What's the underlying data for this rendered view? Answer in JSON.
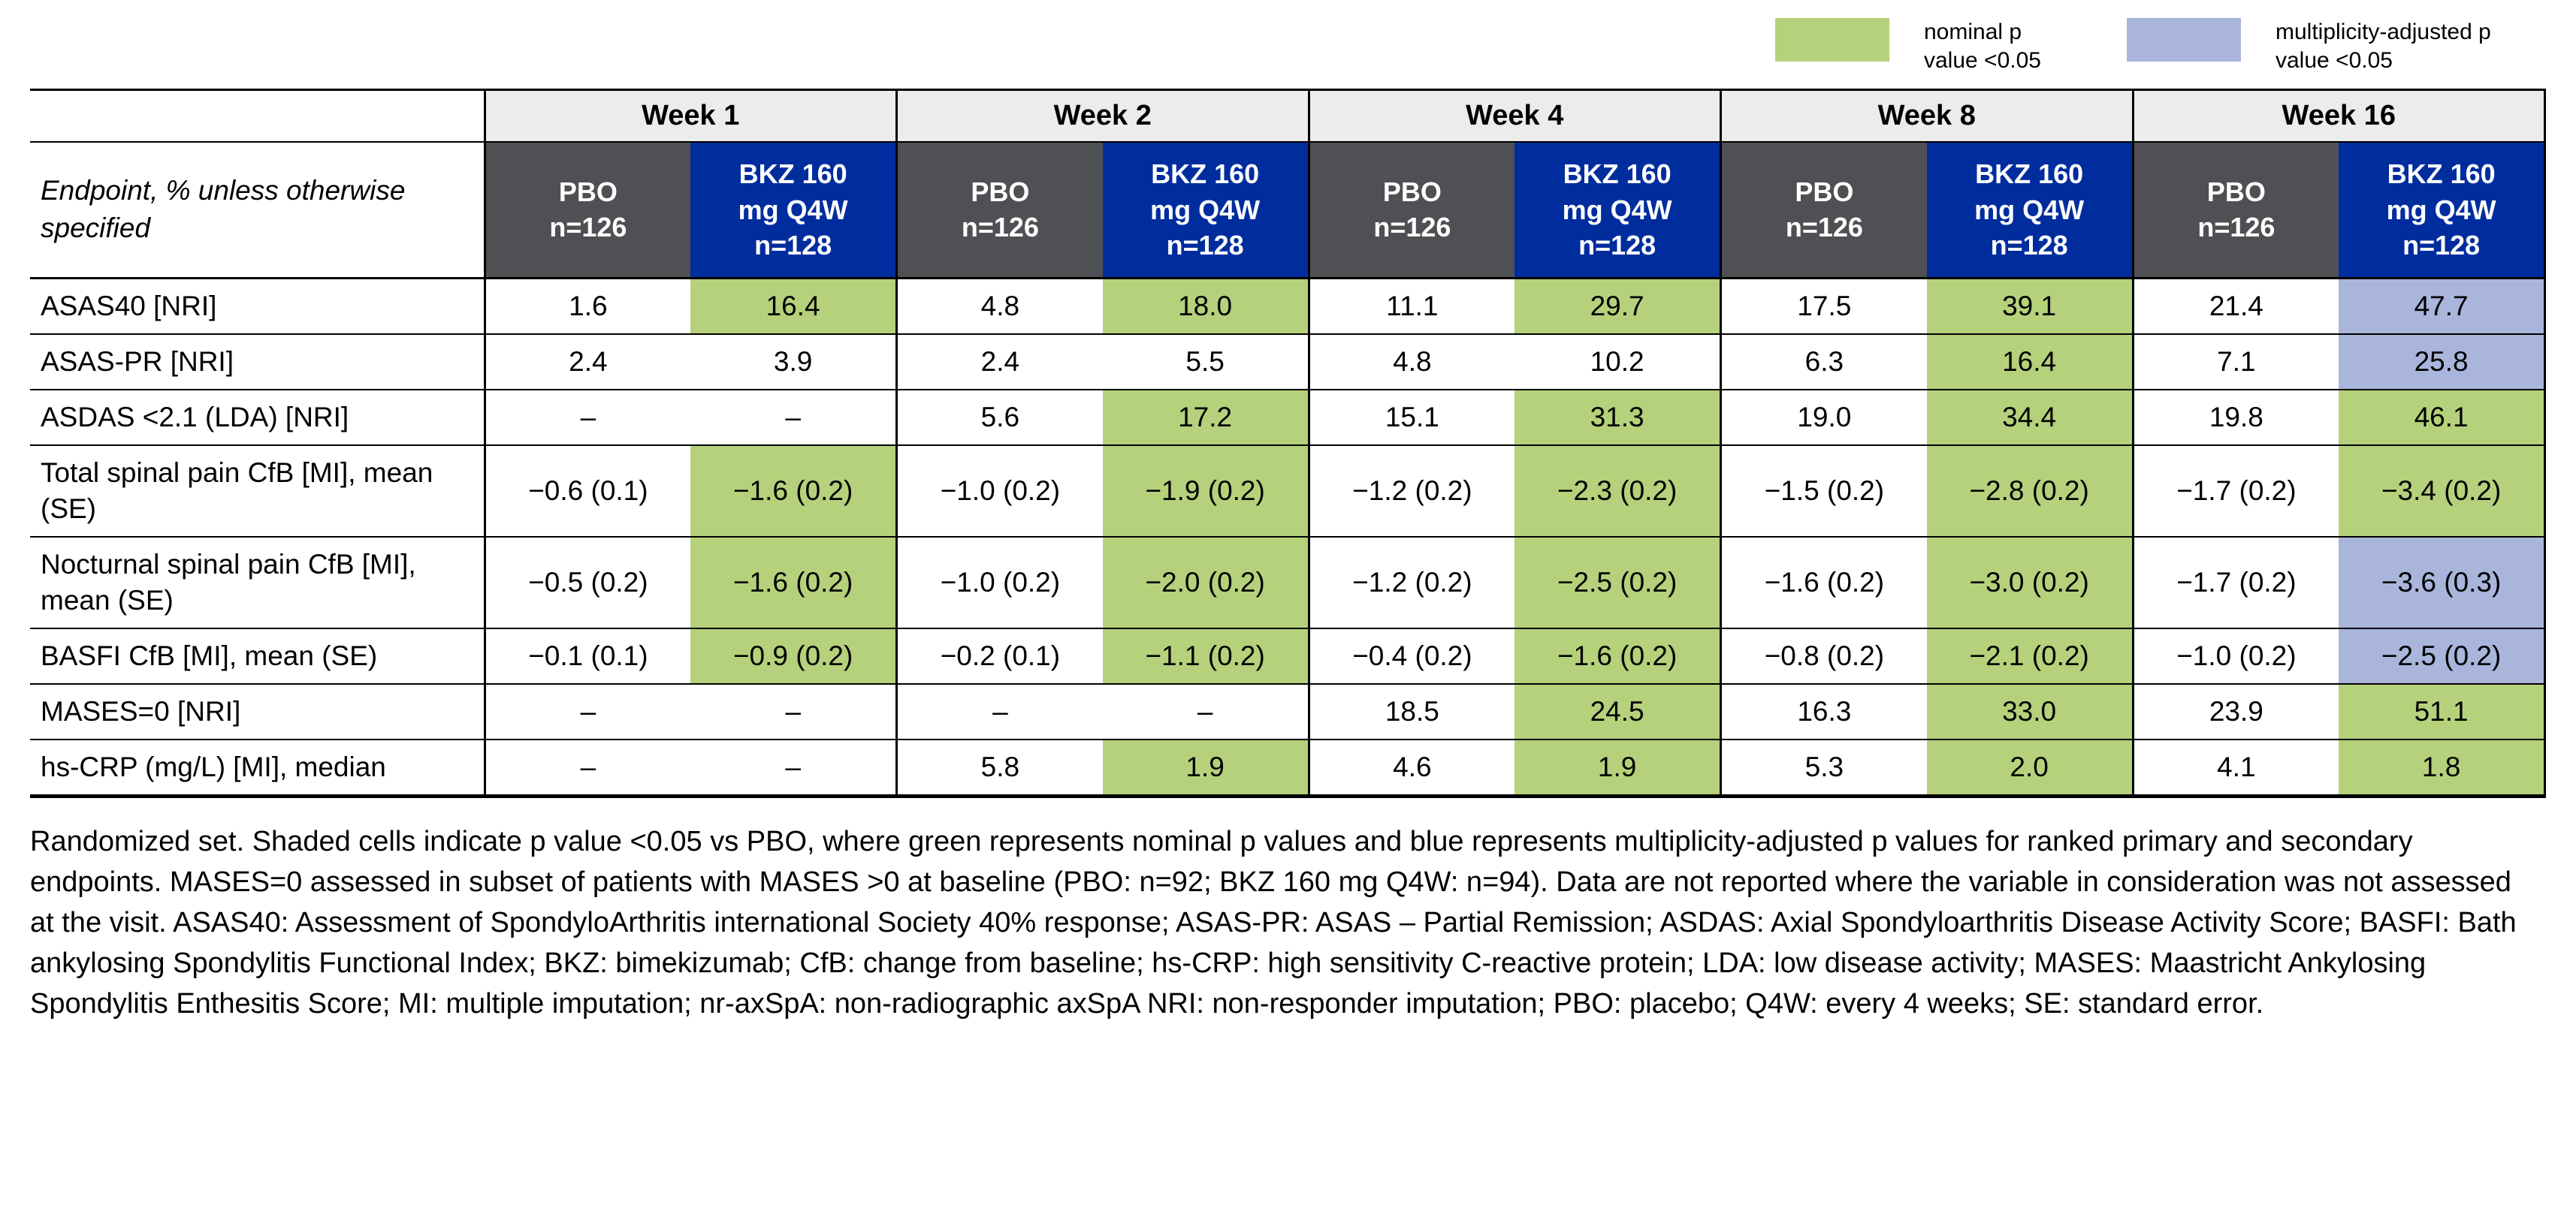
{
  "colors": {
    "green": "#b5d17b",
    "blue": "#a9b5db",
    "pbo": "#4e5053",
    "bkz": "#002d9e",
    "weekbg": "#ececec"
  },
  "legend": {
    "items": [
      {
        "label": "nominal p value <0.05",
        "color": "#b5d17b"
      },
      {
        "label": "multiplicity-adjusted p value <0.05",
        "color": "#a9b5db"
      }
    ]
  },
  "table": {
    "corner_label": "Endpoint, % unless otherwise specified",
    "weeks": [
      "Week 1",
      "Week 2",
      "Week 4",
      "Week 8",
      "Week 16"
    ],
    "pbo_header": "PBO\nn=126",
    "bkz_header": "BKZ 160\nmg Q4W\nn=128",
    "rows": [
      {
        "label": "ASAS40 [NRI]",
        "cells": [
          {
            "v": "1.6"
          },
          {
            "v": "16.4",
            "hl": "green"
          },
          {
            "v": "4.8"
          },
          {
            "v": "18.0",
            "hl": "green"
          },
          {
            "v": "11.1"
          },
          {
            "v": "29.7",
            "hl": "green"
          },
          {
            "v": "17.5"
          },
          {
            "v": "39.1",
            "hl": "green"
          },
          {
            "v": "21.4"
          },
          {
            "v": "47.7",
            "hl": "blue"
          }
        ]
      },
      {
        "label": "ASAS-PR [NRI]",
        "cells": [
          {
            "v": "2.4"
          },
          {
            "v": "3.9"
          },
          {
            "v": "2.4"
          },
          {
            "v": "5.5"
          },
          {
            "v": "4.8"
          },
          {
            "v": "10.2"
          },
          {
            "v": "6.3"
          },
          {
            "v": "16.4",
            "hl": "green"
          },
          {
            "v": "7.1"
          },
          {
            "v": "25.8",
            "hl": "blue"
          }
        ]
      },
      {
        "label": "ASDAS <2.1 (LDA) [NRI]",
        "cells": [
          {
            "v": "–"
          },
          {
            "v": "–"
          },
          {
            "v": "5.6"
          },
          {
            "v": "17.2",
            "hl": "green"
          },
          {
            "v": "15.1"
          },
          {
            "v": "31.3",
            "hl": "green"
          },
          {
            "v": "19.0"
          },
          {
            "v": "34.4",
            "hl": "green"
          },
          {
            "v": "19.8"
          },
          {
            "v": "46.1",
            "hl": "green"
          }
        ]
      },
      {
        "label": "Total spinal pain CfB [MI], mean (SE)",
        "cells": [
          {
            "v": "−0.6 (0.1)"
          },
          {
            "v": "−1.6 (0.2)",
            "hl": "green"
          },
          {
            "v": "−1.0 (0.2)"
          },
          {
            "v": "−1.9 (0.2)",
            "hl": "green"
          },
          {
            "v": "−1.2 (0.2)"
          },
          {
            "v": "−2.3 (0.2)",
            "hl": "green"
          },
          {
            "v": "−1.5 (0.2)"
          },
          {
            "v": "−2.8 (0.2)",
            "hl": "green"
          },
          {
            "v": "−1.7 (0.2)"
          },
          {
            "v": "−3.4 (0.2)",
            "hl": "green"
          }
        ]
      },
      {
        "label": "Nocturnal spinal pain CfB [MI], mean (SE)",
        "cells": [
          {
            "v": "−0.5 (0.2)"
          },
          {
            "v": "−1.6 (0.2)",
            "hl": "green"
          },
          {
            "v": "−1.0 (0.2)"
          },
          {
            "v": "−2.0 (0.2)",
            "hl": "green"
          },
          {
            "v": "−1.2 (0.2)"
          },
          {
            "v": "−2.5 (0.2)",
            "hl": "green"
          },
          {
            "v": "−1.6 (0.2)"
          },
          {
            "v": "−3.0 (0.2)",
            "hl": "green"
          },
          {
            "v": "−1.7 (0.2)"
          },
          {
            "v": "−3.6 (0.3)",
            "hl": "blue"
          }
        ]
      },
      {
        "label": "BASFI CfB [MI], mean (SE)",
        "cells": [
          {
            "v": "−0.1 (0.1)"
          },
          {
            "v": "−0.9 (0.2)",
            "hl": "green"
          },
          {
            "v": "−0.2 (0.1)"
          },
          {
            "v": "−1.1 (0.2)",
            "hl": "green"
          },
          {
            "v": "−0.4 (0.2)"
          },
          {
            "v": "−1.6 (0.2)",
            "hl": "green"
          },
          {
            "v": "−0.8 (0.2)"
          },
          {
            "v": "−2.1 (0.2)",
            "hl": "green"
          },
          {
            "v": "−1.0 (0.2)"
          },
          {
            "v": "−2.5 (0.2)",
            "hl": "blue"
          }
        ]
      },
      {
        "label": "MASES=0 [NRI]",
        "cells": [
          {
            "v": "–"
          },
          {
            "v": "–"
          },
          {
            "v": "–"
          },
          {
            "v": "–"
          },
          {
            "v": "18.5"
          },
          {
            "v": "24.5",
            "hl": "green"
          },
          {
            "v": "16.3"
          },
          {
            "v": "33.0",
            "hl": "green"
          },
          {
            "v": "23.9"
          },
          {
            "v": "51.1",
            "hl": "green"
          }
        ]
      },
      {
        "label": "hs-CRP (mg/L) [MI], median",
        "cells": [
          {
            "v": "–"
          },
          {
            "v": "–"
          },
          {
            "v": "5.8"
          },
          {
            "v": "1.9",
            "hl": "green"
          },
          {
            "v": "4.6"
          },
          {
            "v": "1.9",
            "hl": "green"
          },
          {
            "v": "5.3"
          },
          {
            "v": "2.0",
            "hl": "green"
          },
          {
            "v": "4.1"
          },
          {
            "v": "1.8",
            "hl": "green"
          }
        ]
      }
    ]
  },
  "footnote": "Randomized set. Shaded cells indicate p value <0.05 vs PBO, where green represents nominal p values and blue represents multiplicity-adjusted p values for ranked primary and secondary endpoints. MASES=0 assessed in subset of patients with MASES >0 at baseline (PBO: n=92; BKZ 160 mg Q4W: n=94). Data are not reported where the variable in consideration was not assessed at the visit. ASAS40: Assessment of SpondyloArthritis international Society 40% response; ASAS-PR: ASAS – Partial Remission; ASDAS: Axial Spondyloarthritis Disease Activity Score; BASFI: Bath ankylosing Spondylitis Functional Index; BKZ: bimekizumab; CfB: change from baseline; hs-CRP: high sensitivity C-reactive protein; LDA: low disease activity; MASES: Maastricht Ankylosing Spondylitis Enthesitis Score; MI: multiple imputation; nr-axSpA: non-radiographic axSpA NRI: non-responder imputation;  PBO: placebo; Q4W: every 4 weeks; SE: standard error."
}
